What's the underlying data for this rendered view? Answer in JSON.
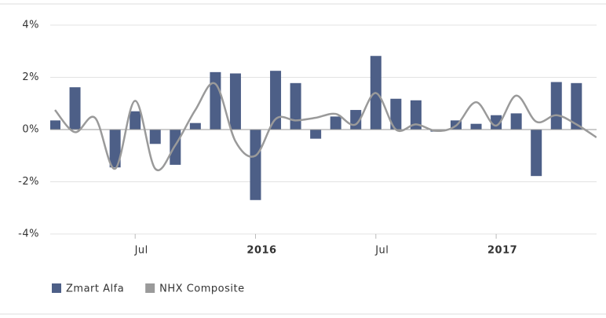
{
  "chart_data": {
    "type": "bar_line",
    "categories": [
      null,
      null,
      null,
      null,
      "Jul",
      null,
      null,
      null,
      null,
      null,
      "2016",
      null,
      null,
      null,
      null,
      null,
      "Jul",
      null,
      null,
      null,
      null,
      null,
      "2017",
      null,
      null,
      null,
      null,
      null
    ],
    "series": [
      {
        "name": "Zmart Alfa",
        "type": "bar",
        "color": "#4d5f87",
        "values": [
          0.35,
          1.62,
          null,
          -1.45,
          0.7,
          -0.55,
          -1.35,
          0.25,
          2.2,
          2.15,
          -2.7,
          2.25,
          1.78,
          -0.35,
          0.5,
          0.75,
          2.82,
          1.18,
          1.12,
          -0.08,
          0.35,
          0.22,
          0.55,
          0.62,
          -1.78,
          1.82,
          1.78,
          null
        ]
      },
      {
        "name": "NHX Composite",
        "type": "line",
        "color": "#9a9a9a",
        "values": [
          0.75,
          -0.1,
          0.45,
          -1.5,
          1.1,
          -1.5,
          -0.6,
          0.75,
          1.75,
          -0.45,
          -1.0,
          0.4,
          0.35,
          0.45,
          0.6,
          0.2,
          1.4,
          0.0,
          0.2,
          -0.05,
          0.15,
          1.05,
          0.15,
          1.3,
          0.3,
          0.55,
          0.2,
          -0.3
        ]
      }
    ],
    "ylim": [
      -4,
      4
    ],
    "yticks": [
      {
        "value": -4,
        "label": "-4%"
      },
      {
        "value": -2,
        "label": "-2%"
      },
      {
        "value": 0,
        "label": "0%"
      },
      {
        "value": 2,
        "label": "2%"
      },
      {
        "value": 4,
        "label": "4%"
      }
    ],
    "grid": true
  }
}
